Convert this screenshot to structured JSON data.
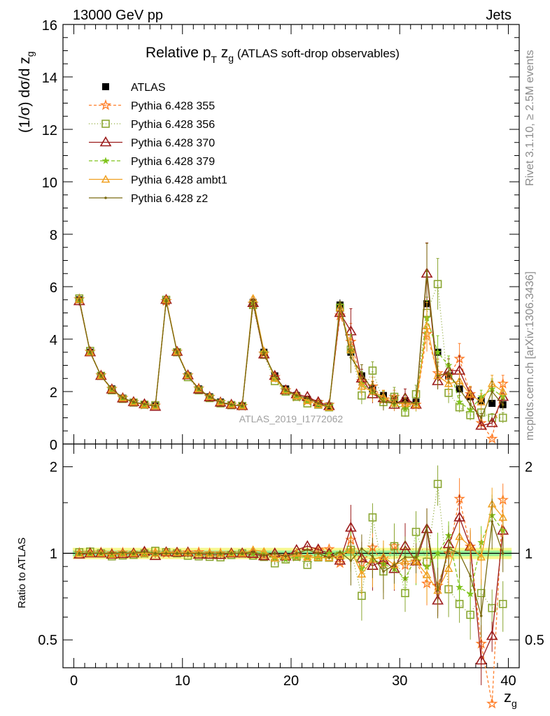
{
  "header": {
    "left": "13000 GeV pp",
    "right": "Jets",
    "side_top": "Rivet 3.1.10, ≥ 2.5M events",
    "side_bottom": "mcplots.cern.ch [arXiv:1306.3436]",
    "watermark": "ATLAS_2019_I1772062"
  },
  "plot_title": {
    "main": "Relative p",
    "sub1": "T",
    "mid": " z",
    "sub2": "g",
    "paren": " (ATLAS soft-drop observables)"
  },
  "axes": {
    "ylabel_main": "(1/σ) dσ/d z",
    "ylabel_sub": "g",
    "ratio_ylabel": "Ratio to ATLAS",
    "xlabel_main": "z",
    "xlabel_sub": "g"
  },
  "colors": {
    "ATLAS": "#000000",
    "p355": "#ff7f2a",
    "p356": "#8aa632",
    "p370": "#9b1b1b",
    "p379": "#7fc31c",
    "ambt1": "#f0a020",
    "z2": "#7a6a10"
  },
  "chart_data": [
    {
      "type": "line",
      "xlim": [
        -1,
        41
      ],
      "ylim": [
        0,
        16
      ],
      "yticks": [
        0,
        2,
        4,
        6,
        8,
        10,
        12,
        14,
        16
      ],
      "xticks": [
        0,
        10,
        20,
        30,
        40
      ],
      "legend_placement": "top-left",
      "x": [
        0.5,
        1.5,
        2.5,
        3.5,
        4.5,
        5.5,
        6.5,
        7.5,
        8.5,
        9.5,
        10.5,
        11.5,
        12.5,
        13.5,
        14.5,
        15.5,
        16.5,
        17.5,
        18.5,
        19.5,
        20.5,
        21.5,
        22.5,
        23.5,
        24.5,
        25.5,
        26.5,
        27.5,
        28.5,
        29.5,
        30.5,
        31.5,
        32.5,
        33.5,
        34.5,
        35.5,
        36.5,
        37.5,
        38.5,
        39.5
      ],
      "series": [
        {
          "name": "ATLAS",
          "marker": "filled-square",
          "dash": "none",
          "values": [
            5.5,
            3.5,
            2.6,
            2.1,
            1.75,
            1.6,
            1.5,
            1.45,
            5.45,
            3.5,
            2.6,
            2.1,
            1.8,
            1.6,
            1.5,
            1.45,
            5.4,
            3.5,
            2.6,
            2.1,
            1.85,
            1.7,
            1.55,
            1.45,
            5.3,
            3.5,
            2.6,
            2.1,
            1.85,
            1.7,
            1.65,
            1.6,
            5.35,
            3.5,
            2.6,
            2.1,
            1.8,
            1.65,
            1.55,
            1.5
          ]
        },
        {
          "name": "Pythia 6.428 355",
          "marker": "star",
          "dash": "4,3",
          "values": [
            5.52,
            3.52,
            2.62,
            2.1,
            1.76,
            1.6,
            1.5,
            1.46,
            5.45,
            3.52,
            2.62,
            2.12,
            1.8,
            1.6,
            1.5,
            1.45,
            5.35,
            3.45,
            2.55,
            2.05,
            1.8,
            1.65,
            1.6,
            1.5,
            4.9,
            3.9,
            2.4,
            2.2,
            1.7,
            1.8,
            1.5,
            1.5,
            4.2,
            2.7,
            2.6,
            3.25,
            1.9,
            0.8,
            0.2,
            2.3
          ]
        },
        {
          "name": "Pythia 6.428 356",
          "marker": "open-square",
          "dash": "1,3",
          "values": [
            5.55,
            3.55,
            2.6,
            2.05,
            1.72,
            1.58,
            1.5,
            1.48,
            5.5,
            3.5,
            2.55,
            2.05,
            1.75,
            1.55,
            1.48,
            1.45,
            5.3,
            3.4,
            2.4,
            2.0,
            1.8,
            1.55,
            1.5,
            1.4,
            5.2,
            3.6,
            1.85,
            2.8,
            1.6,
            1.8,
            1.2,
            1.9,
            5.0,
            6.1,
            1.95,
            1.4,
            1.1,
            1.2,
            1.0,
            1.0
          ]
        },
        {
          "name": "Pythia 6.428 370",
          "marker": "open-triangle",
          "dash": "none",
          "values": [
            5.45,
            3.5,
            2.6,
            2.08,
            1.74,
            1.6,
            1.52,
            1.42,
            5.5,
            3.52,
            2.62,
            2.08,
            1.78,
            1.58,
            1.5,
            1.45,
            5.38,
            3.42,
            2.6,
            2.05,
            1.9,
            1.8,
            1.6,
            1.45,
            5.0,
            4.3,
            2.5,
            1.9,
            1.75,
            1.5,
            1.75,
            1.5,
            6.5,
            2.4,
            2.8,
            2.8,
            1.9,
            0.7,
            0.8,
            1.8
          ]
        },
        {
          "name": "Pythia 6.428 379",
          "marker": "small-star",
          "dash": "5,3",
          "values": [
            5.5,
            3.5,
            2.6,
            2.08,
            1.75,
            1.6,
            1.5,
            1.45,
            5.5,
            3.5,
            2.6,
            2.1,
            1.8,
            1.6,
            1.5,
            1.45,
            5.4,
            3.5,
            2.5,
            2.0,
            1.8,
            1.65,
            1.5,
            1.45,
            5.3,
            3.6,
            2.3,
            2.0,
            1.7,
            1.5,
            1.35,
            1.55,
            4.8,
            3.5,
            3.0,
            1.6,
            1.3,
            1.8,
            2.1,
            1.8
          ]
        },
        {
          "name": "Pythia 6.428 ambt1",
          "marker": "open-triangle-small",
          "dash": "none",
          "values": [
            5.5,
            3.5,
            2.6,
            2.08,
            1.75,
            1.6,
            1.5,
            1.45,
            5.5,
            3.52,
            2.62,
            2.1,
            1.8,
            1.6,
            1.5,
            1.45,
            5.55,
            3.55,
            2.5,
            2.05,
            1.85,
            1.65,
            1.5,
            1.4,
            5.2,
            3.6,
            2.2,
            2.0,
            1.8,
            1.55,
            1.55,
            1.5,
            4.5,
            2.6,
            2.3,
            2.4,
            1.9,
            1.6,
            2.3,
            2.0
          ]
        },
        {
          "name": "Pythia 6.428 z2",
          "marker": "dot",
          "dash": "none",
          "values": [
            5.5,
            3.5,
            2.6,
            2.1,
            1.76,
            1.6,
            1.52,
            1.45,
            5.45,
            3.5,
            2.6,
            2.1,
            1.8,
            1.6,
            1.5,
            1.45,
            5.45,
            3.45,
            2.6,
            2.05,
            1.85,
            1.75,
            1.55,
            1.4,
            5.35,
            3.3,
            2.7,
            2.05,
            1.6,
            1.55,
            1.6,
            1.55,
            6.6,
            2.6,
            2.7,
            2.1,
            1.5,
            1.0,
            2.0,
            1.5
          ]
        }
      ]
    },
    {
      "type": "line",
      "name": "ratio",
      "xlim": [
        -1,
        41
      ],
      "ylim": [
        0.4,
        2.4
      ],
      "yscale": "log",
      "yticks": [
        0.5,
        1,
        2
      ],
      "reference_line": 1
    }
  ]
}
